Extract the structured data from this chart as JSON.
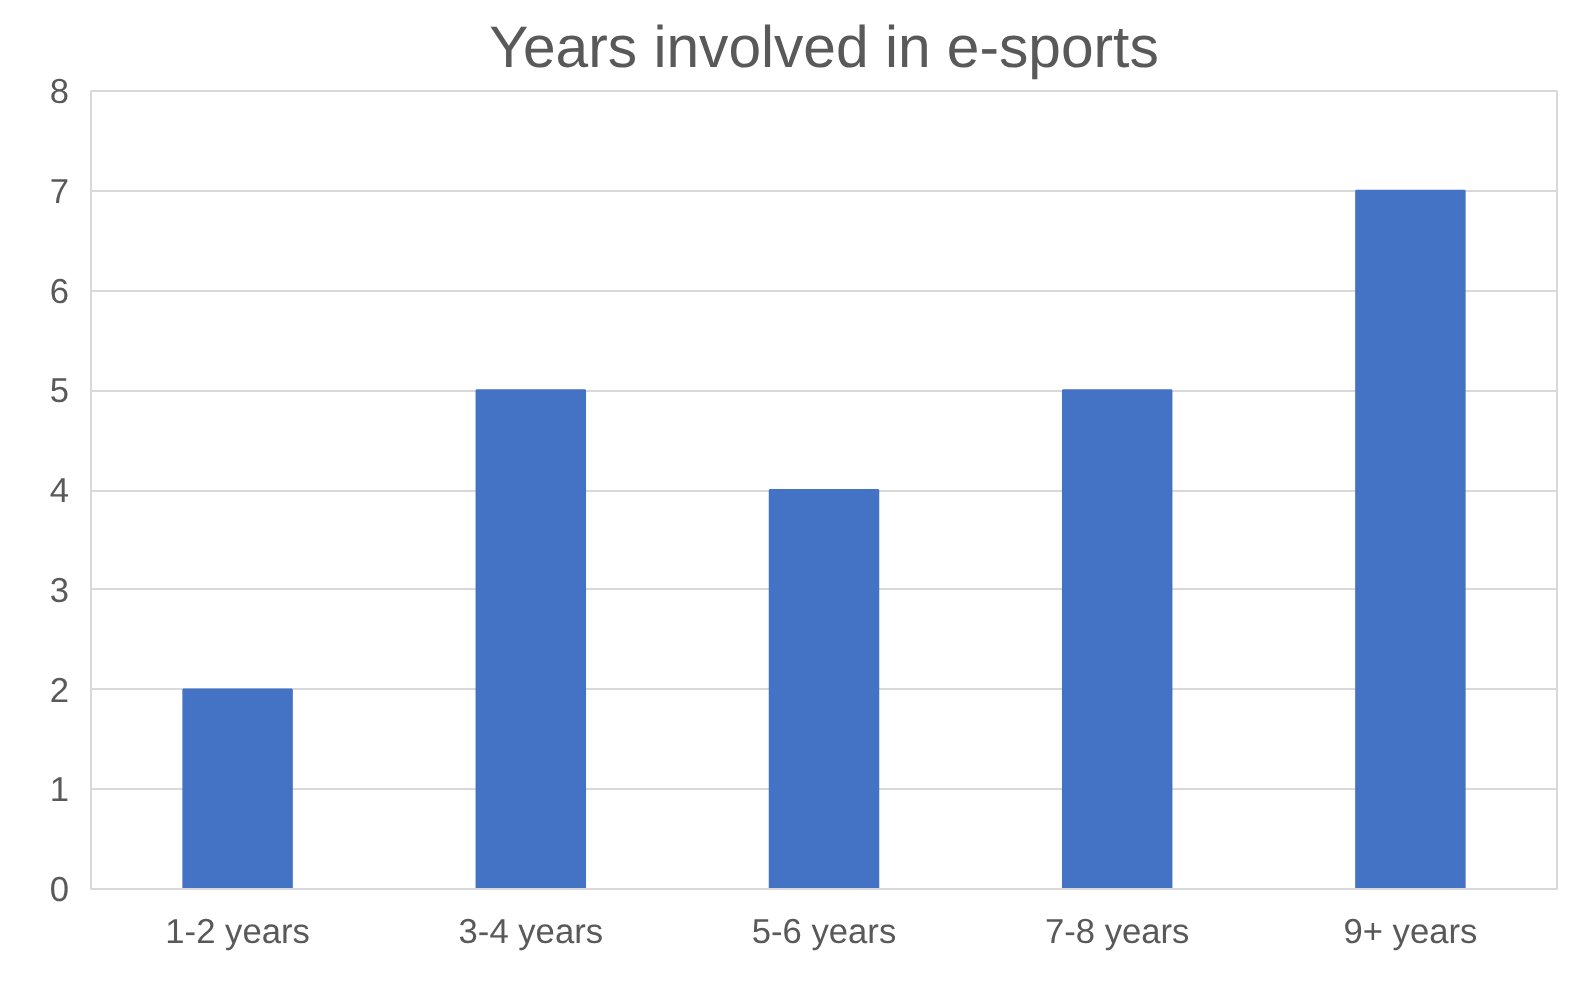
{
  "chart_data": {
    "type": "bar",
    "title": "Years involved in e-sports",
    "categories": [
      "1-2 years",
      "3-4 years",
      "5-6 years",
      "7-8 years",
      "9+ years"
    ],
    "values": [
      2,
      5,
      4,
      5,
      7
    ],
    "color": "#4472c4",
    "ylim": [
      0,
      8
    ],
    "yticks": [
      0,
      1,
      2,
      3,
      4,
      5,
      6,
      7,
      8
    ],
    "grid": "y"
  }
}
